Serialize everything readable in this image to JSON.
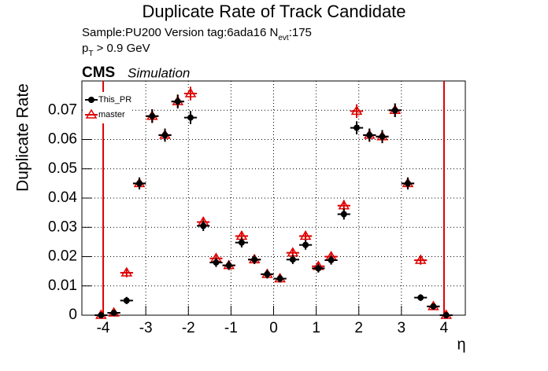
{
  "chart_data": {
    "type": "errorbar",
    "title": "Duplicate Rate of Track Candidate",
    "info_line": [
      "Sample:PU200   Version tag:6ada16  N",
      "evt",
      ":175"
    ],
    "cut_line": [
      "p",
      "T",
      " > 0.9 GeV"
    ],
    "experiment": "CMS",
    "experiment_note": "Simulation",
    "ylabel": "Duplicate Rate",
    "xlabel": "η",
    "x": [
      -4.05,
      -3.75,
      -3.45,
      -3.15,
      -2.85,
      -2.55,
      -2.25,
      -1.95,
      -1.65,
      -1.35,
      -1.05,
      -0.75,
      -0.45,
      -0.15,
      0.15,
      0.45,
      0.75,
      1.05,
      1.35,
      1.65,
      1.95,
      2.25,
      2.55,
      2.85,
      3.15,
      3.45,
      3.75,
      4.05
    ],
    "series": [
      {
        "name": "master",
        "color": "#dd0000",
        "marker": "open-triangle",
        "values": [
          0,
          0.0008,
          0.0145,
          0.045,
          0.068,
          0.0615,
          0.073,
          0.0757,
          0.0318,
          0.0194,
          0.017,
          0.027,
          0.019,
          0.014,
          0.0125,
          0.0213,
          0.027,
          0.0167,
          0.02,
          0.0374,
          0.0697,
          0.0615,
          0.061,
          0.07,
          0.045,
          0.0188,
          0.003,
          0
        ],
        "yerr": [
          0,
          0.0005,
          0.001,
          0.0015,
          0.0018,
          0.0017,
          0.0018,
          0.0018,
          0.0012,
          0.001,
          0.001,
          0.0012,
          0.001,
          0.0009,
          0.0008,
          0.001,
          0.0012,
          0.0009,
          0.001,
          0.0014,
          0.0018,
          0.0017,
          0.0017,
          0.0018,
          0.0015,
          0.001,
          0.0005,
          0
        ]
      },
      {
        "name": "This_PR",
        "color": "#000000",
        "marker": "filled-circle",
        "values": [
          0,
          0.0008,
          0.005,
          0.045,
          0.068,
          0.0615,
          0.073,
          0.0675,
          0.0305,
          0.018,
          0.017,
          0.0248,
          0.019,
          0.014,
          0.0125,
          0.019,
          0.024,
          0.016,
          0.0188,
          0.0345,
          0.064,
          0.0615,
          0.061,
          0.07,
          0.045,
          0.006,
          0.003,
          0
        ],
        "yerr": [
          0,
          0.0005,
          0.0007,
          0.0015,
          0.0018,
          0.0017,
          0.0018,
          0.0017,
          0.0012,
          0.001,
          0.001,
          0.0011,
          0.001,
          0.0009,
          0.0008,
          0.001,
          0.0011,
          0.0009,
          0.001,
          0.0013,
          0.0017,
          0.0017,
          0.0017,
          0.0018,
          0.0015,
          0.0006,
          0.0005,
          0
        ]
      }
    ],
    "vlines": [
      -4,
      4
    ],
    "vline_color": "#dd0000",
    "xlim": [
      -4.5,
      4.5
    ],
    "xticks": [
      -4,
      -3,
      -2,
      -1,
      0,
      1,
      2,
      3,
      4
    ],
    "ylim": [
      0,
      0.08
    ],
    "yticks": [
      0,
      0.01,
      0.02,
      0.03,
      0.04,
      0.05,
      0.06,
      0.07
    ],
    "grid": true,
    "legend": "upper left"
  }
}
